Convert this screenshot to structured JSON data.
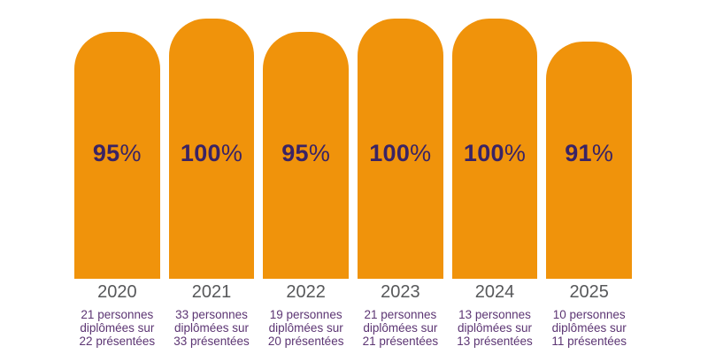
{
  "chart_data": {
    "type": "bar",
    "title": "",
    "xlabel": "",
    "ylabel": "",
    "ylim": [
      0,
      100
    ],
    "grid": false,
    "legend": "none",
    "categories": [
      "2020",
      "2021",
      "2022",
      "2023",
      "2024",
      "2025"
    ],
    "values": [
      95,
      100,
      95,
      100,
      100,
      91
    ],
    "value_labels": [
      "95%",
      "100%",
      "95%",
      "100%",
      "100%",
      "91%"
    ],
    "percent_sign": "%",
    "sublabels": [
      [
        "21 personnes",
        "diplômées sur",
        "22 présentées"
      ],
      [
        "33 personnes",
        "diplômées sur",
        "33 présentées"
      ],
      [
        "19 personnes",
        "diplômées sur",
        "20 présentées"
      ],
      [
        "21 personnes",
        "diplômées sur",
        "21 présentées"
      ],
      [
        "13 personnes",
        "diplômées sur",
        "13 présentées"
      ],
      [
        "10 personnes",
        "diplômées sur",
        "11 présentées"
      ]
    ]
  },
  "colors": {
    "bar": "#F0930B",
    "value_text": "#3A2364",
    "year_text": "#57585A",
    "sublabel_text": "#5C3573",
    "background": "#FFFFFF"
  }
}
